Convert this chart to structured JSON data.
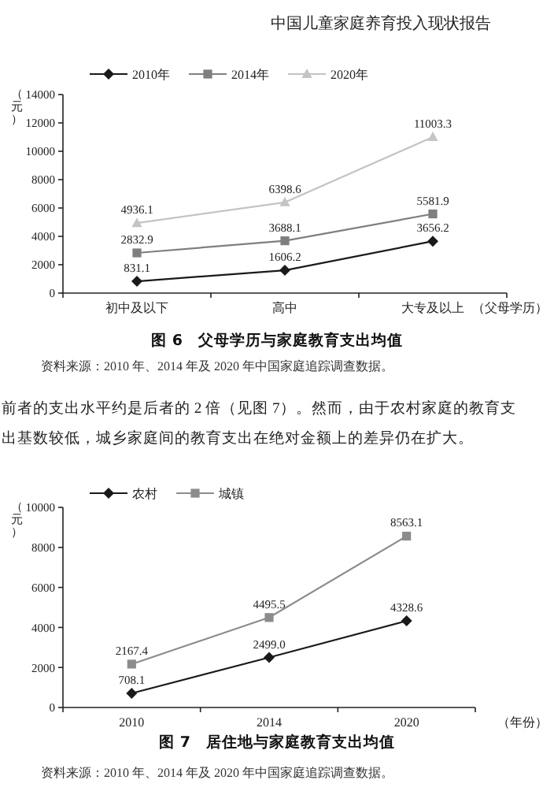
{
  "chart_data": [
    {
      "type": "line",
      "title": "图 6　父母学历与家庭教育支出均值",
      "xlabel": "（父母学历）",
      "ylabel": "（元）",
      "categories": [
        "初中及以下",
        "高中",
        "大专及以上"
      ],
      "series": [
        {
          "name": "2010年",
          "color": "#1a1a1a",
          "marker": "diamond",
          "values": [
            831.1,
            1606.2,
            3656.2
          ]
        },
        {
          "name": "2014年",
          "color": "#7f7f7f",
          "marker": "square",
          "values": [
            2832.9,
            3688.1,
            5581.9
          ]
        },
        {
          "name": "2020年",
          "color": "#c4c4c4",
          "marker": "triangle",
          "values": [
            4936.1,
            6398.6,
            11003.3
          ]
        }
      ],
      "ylim": [
        0,
        14000
      ],
      "yticks": [
        0,
        2000,
        4000,
        6000,
        8000,
        10000,
        12000,
        14000
      ],
      "data_labels": true,
      "legend": "top left",
      "annotations": [
        "中国儿童家庭养育投入现状报告",
        "资料来源：2010 年、2014 年及 2020 年中国家庭追踪调查数据。"
      ]
    },
    {
      "type": "line",
      "title": "图 7　居住地与家庭教育支出均值",
      "xlabel": "（年份）",
      "ylabel": "（元）",
      "categories": [
        "2010",
        "2014",
        "2020"
      ],
      "series": [
        {
          "name": "农村",
          "color": "#1a1a1a",
          "marker": "diamond",
          "values": [
            708.1,
            2499.0,
            4328.6
          ]
        },
        {
          "name": "城镇",
          "color": "#8c8c8c",
          "marker": "square",
          "values": [
            2167.4,
            4495.5,
            8563.1
          ]
        }
      ],
      "ylim": [
        0,
        10000
      ],
      "yticks": [
        0,
        2000,
        4000,
        6000,
        8000,
        10000
      ],
      "value_labels": [
        [
          "708.1",
          "2499.0",
          "4328.6"
        ],
        [
          "2167.4",
          "4495.5",
          "8563.1"
        ]
      ],
      "legend": "top left",
      "annotations": [
        "前者的支出水平约是后者的 2 倍（见图 7）。然而，由于农村家庭的教育支",
        "出基数较低，城乡家庭间的教育支出在绝对金额上的差异仍在扩大。",
        "资料来源：2010 年、2014 年及 2020 年中国家庭追踪调查数据。"
      ]
    }
  ]
}
